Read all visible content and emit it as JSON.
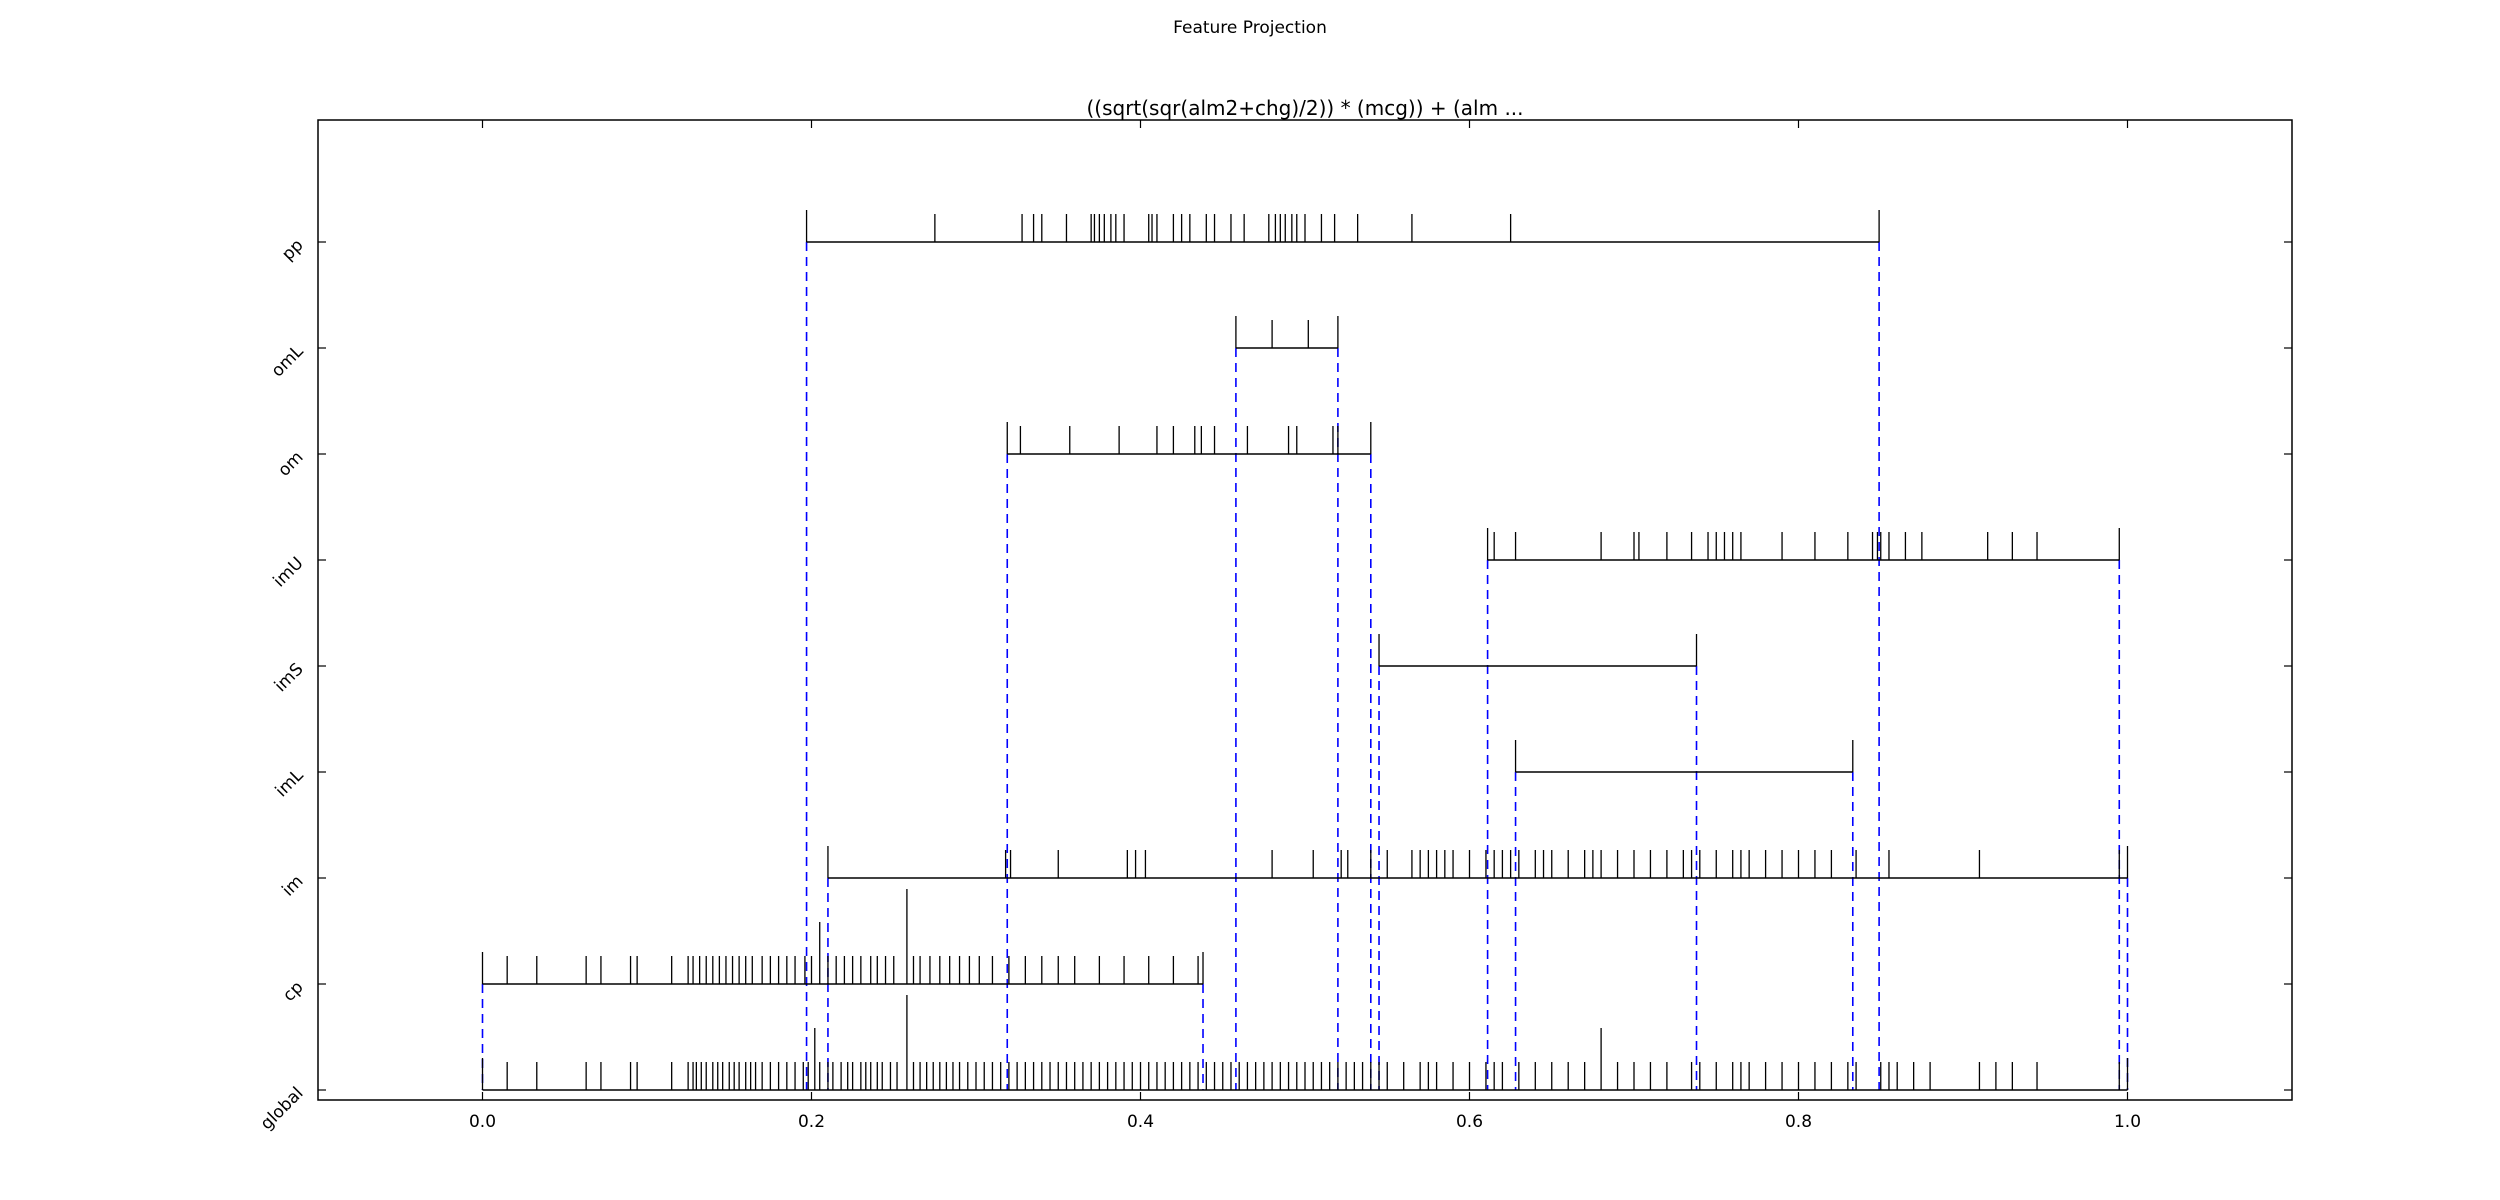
{
  "figure_title": "Feature Projection",
  "chart_data": {
    "type": "scatter",
    "title": "((sqrt(sqr(alm2+chg)/2)) * (mcg)) + (alm ...",
    "xlabel": "",
    "ylabel": "",
    "xlim": [
      -0.1,
      1.1
    ],
    "xticks": [
      "0.0",
      "0.2",
      "0.4",
      "0.6",
      "0.8",
      "1.0"
    ],
    "xtick_values": [
      0.0,
      0.2,
      0.4,
      0.6,
      0.8,
      1.0
    ],
    "grid": false,
    "boundary_line_color": "#0000ff",
    "mark_color": "#000000",
    "series": [
      {
        "name": "global",
        "range": [
          0.0,
          1.0
        ],
        "values": [
          0.0,
          0.015,
          0.033,
          0.063,
          0.072,
          0.09,
          0.094,
          0.115,
          0.125,
          0.128,
          0.13,
          0.133,
          0.136,
          0.14,
          0.143,
          0.146,
          0.15,
          0.153,
          0.156,
          0.16,
          0.163,
          0.166,
          0.17,
          0.175,
          0.18,
          0.185,
          0.19,
          0.195,
          0.198,
          0.202,
          0.205,
          0.21,
          0.213,
          0.218,
          0.222,
          0.225,
          0.23,
          0.233,
          0.236,
          0.24,
          0.243,
          0.248,
          0.252,
          0.258,
          0.262,
          0.266,
          0.27,
          0.274,
          0.278,
          0.282,
          0.286,
          0.29,
          0.295,
          0.3,
          0.305,
          0.31,
          0.315,
          0.32,
          0.325,
          0.33,
          0.335,
          0.34,
          0.345,
          0.35,
          0.355,
          0.36,
          0.365,
          0.37,
          0.375,
          0.38,
          0.385,
          0.39,
          0.395,
          0.4,
          0.405,
          0.41,
          0.415,
          0.42,
          0.425,
          0.43,
          0.435,
          0.44,
          0.445,
          0.45,
          0.455,
          0.46,
          0.465,
          0.47,
          0.475,
          0.48,
          0.485,
          0.49,
          0.495,
          0.5,
          0.505,
          0.51,
          0.515,
          0.52,
          0.525,
          0.53,
          0.535,
          0.54,
          0.545,
          0.55,
          0.56,
          0.57,
          0.575,
          0.58,
          0.59,
          0.6,
          0.61,
          0.615,
          0.62,
          0.63,
          0.64,
          0.65,
          0.66,
          0.67,
          0.68,
          0.69,
          0.7,
          0.71,
          0.72,
          0.735,
          0.74,
          0.75,
          0.76,
          0.765,
          0.77,
          0.78,
          0.79,
          0.8,
          0.81,
          0.82,
          0.83,
          0.835,
          0.85,
          0.855,
          0.86,
          0.87,
          0.88,
          0.91,
          0.92,
          0.93,
          0.945,
          0.995,
          1.0
        ]
      },
      {
        "name": "cp",
        "range": [
          0.0,
          0.438
        ],
        "values": [
          0.0,
          0.015,
          0.033,
          0.063,
          0.072,
          0.09,
          0.094,
          0.115,
          0.125,
          0.128,
          0.132,
          0.136,
          0.14,
          0.144,
          0.148,
          0.152,
          0.156,
          0.16,
          0.164,
          0.17,
          0.175,
          0.18,
          0.185,
          0.19,
          0.196,
          0.2,
          0.205,
          0.21,
          0.215,
          0.22,
          0.225,
          0.23,
          0.236,
          0.24,
          0.245,
          0.25,
          0.262,
          0.266,
          0.272,
          0.278,
          0.284,
          0.29,
          0.296,
          0.302,
          0.31,
          0.32,
          0.33,
          0.34,
          0.35,
          0.36,
          0.375,
          0.39,
          0.405,
          0.42,
          0.435,
          0.438
        ]
      },
      {
        "name": "im",
        "range": [
          0.21,
          1.0
        ],
        "values": [
          0.21,
          0.318,
          0.321,
          0.35,
          0.392,
          0.397,
          0.403,
          0.48,
          0.505,
          0.522,
          0.526,
          0.54,
          0.55,
          0.565,
          0.57,
          0.575,
          0.58,
          0.585,
          0.59,
          0.6,
          0.61,
          0.615,
          0.62,
          0.625,
          0.63,
          0.64,
          0.645,
          0.65,
          0.66,
          0.67,
          0.675,
          0.68,
          0.69,
          0.7,
          0.71,
          0.72,
          0.73,
          0.735,
          0.74,
          0.75,
          0.76,
          0.765,
          0.77,
          0.78,
          0.79,
          0.8,
          0.81,
          0.82,
          0.835,
          0.855,
          0.91,
          0.995,
          1.0
        ]
      },
      {
        "name": "imL",
        "range": [
          0.628,
          0.833
        ],
        "values": [
          0.628,
          0.833
        ]
      },
      {
        "name": "imS",
        "range": [
          0.545,
          0.738
        ],
        "values": [
          0.545,
          0.738
        ]
      },
      {
        "name": "imU",
        "range": [
          0.611,
          0.995
        ],
        "values": [
          0.611,
          0.615,
          0.628,
          0.68,
          0.7,
          0.703,
          0.72,
          0.735,
          0.745,
          0.75,
          0.755,
          0.76,
          0.765,
          0.79,
          0.81,
          0.83,
          0.845,
          0.848,
          0.85,
          0.855,
          0.865,
          0.875,
          0.915,
          0.93,
          0.945,
          0.995
        ]
      },
      {
        "name": "om",
        "range": [
          0.319,
          0.54
        ],
        "values": [
          0.319,
          0.327,
          0.357,
          0.387,
          0.41,
          0.42,
          0.433,
          0.437,
          0.445,
          0.465,
          0.49,
          0.495,
          0.517,
          0.52,
          0.54
        ]
      },
      {
        "name": "omL",
        "range": [
          0.458,
          0.52
        ],
        "values": [
          0.458,
          0.48,
          0.502,
          0.52
        ]
      },
      {
        "name": "pp",
        "range": [
          0.197,
          0.849
        ],
        "values": [
          0.197,
          0.275,
          0.328,
          0.335,
          0.34,
          0.355,
          0.37,
          0.372,
          0.375,
          0.378,
          0.382,
          0.385,
          0.39,
          0.405,
          0.407,
          0.41,
          0.42,
          0.425,
          0.43,
          0.44,
          0.445,
          0.455,
          0.463,
          0.478,
          0.482,
          0.485,
          0.488,
          0.492,
          0.495,
          0.5,
          0.51,
          0.518,
          0.532,
          0.565,
          0.625,
          0.849
        ]
      }
    ],
    "raised_marks": [
      {
        "series": "cp",
        "x": 0.258,
        "height": "tall"
      },
      {
        "series": "cp",
        "x": 0.205,
        "height": "medium"
      },
      {
        "series": "global",
        "x": 0.258,
        "height": "tall"
      },
      {
        "series": "global",
        "x": 0.202,
        "height": "medium"
      },
      {
        "series": "global",
        "x": 0.68,
        "height": "medium"
      }
    ]
  }
}
